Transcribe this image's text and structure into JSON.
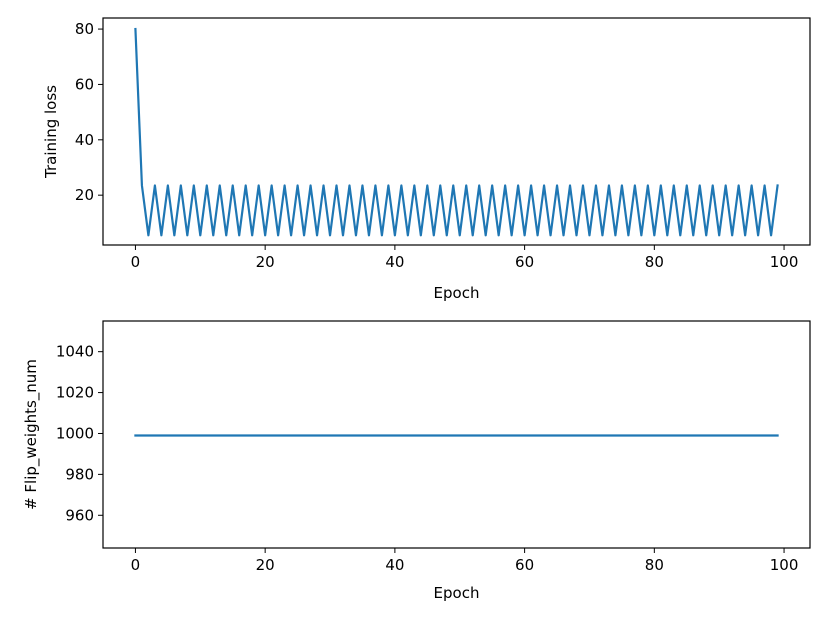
{
  "chart_data": [
    {
      "type": "line",
      "title": "",
      "xlabel": "Epoch",
      "ylabel": "Training loss",
      "xlim": [
        -5,
        104
      ],
      "ylim": [
        2,
        84
      ],
      "xticks": [
        0,
        20,
        40,
        60,
        80,
        100
      ],
      "yticks": [
        20,
        40,
        60,
        80
      ],
      "grid": false,
      "series": [
        {
          "color": "#1f77b4",
          "x": [
            0,
            1,
            2,
            3,
            4,
            5,
            6,
            7,
            8,
            9,
            10,
            11,
            12,
            13,
            14,
            15,
            16,
            17,
            18,
            19,
            20,
            21,
            22,
            23,
            24,
            25,
            26,
            27,
            28,
            29,
            30,
            31,
            32,
            33,
            34,
            35,
            36,
            37,
            38,
            39,
            40,
            41,
            42,
            43,
            44,
            45,
            46,
            47,
            48,
            49,
            50,
            51,
            52,
            53,
            54,
            55,
            56,
            57,
            58,
            59,
            60,
            61,
            62,
            63,
            64,
            65,
            66,
            67,
            68,
            69,
            70,
            71,
            72,
            73,
            74,
            75,
            76,
            77,
            78,
            79,
            80,
            81,
            82,
            83,
            84,
            85,
            86,
            87,
            88,
            89,
            90,
            91,
            92,
            93,
            94,
            95,
            96,
            97,
            98,
            99
          ],
          "y": [
            80,
            23.5,
            5.5,
            23.5,
            5.5,
            23.5,
            5.5,
            23.5,
            5.5,
            23.5,
            5.5,
            23.5,
            5.5,
            23.5,
            5.5,
            23.5,
            5.5,
            23.5,
            5.5,
            23.5,
            5.5,
            23.5,
            5.5,
            23.5,
            5.5,
            23.5,
            5.5,
            23.5,
            5.5,
            23.5,
            5.5,
            23.5,
            5.5,
            23.5,
            5.5,
            23.5,
            5.5,
            23.5,
            5.5,
            23.5,
            5.5,
            23.5,
            5.5,
            23.5,
            5.5,
            23.5,
            5.5,
            23.5,
            5.5,
            23.5,
            5.5,
            23.5,
            5.5,
            23.5,
            5.5,
            23.5,
            5.5,
            23.5,
            5.5,
            23.5,
            5.5,
            23.5,
            5.5,
            23.5,
            5.5,
            23.5,
            5.5,
            23.5,
            5.5,
            23.5,
            5.5,
            23.5,
            5.5,
            23.5,
            5.5,
            23.5,
            5.5,
            23.5,
            5.5,
            23.5,
            5.5,
            23.5,
            5.5,
            23.5,
            5.5,
            23.5,
            5.5,
            23.5,
            5.5,
            23.5,
            5.5,
            23.5,
            5.5,
            23.5,
            5.5,
            23.5,
            5.5,
            23.5,
            5.5,
            23.5
          ]
        }
      ]
    },
    {
      "type": "line",
      "title": "",
      "xlabel": "Epoch",
      "ylabel": "# Flip_weights_num",
      "xlim": [
        -5,
        104
      ],
      "ylim": [
        944,
        1055
      ],
      "xticks": [
        0,
        20,
        40,
        60,
        80,
        100
      ],
      "yticks": [
        960,
        980,
        1000,
        1020,
        1040
      ],
      "grid": false,
      "series": [
        {
          "color": "#1f77b4",
          "x": [
            0,
            99
          ],
          "y": [
            999,
            999
          ]
        }
      ]
    }
  ]
}
